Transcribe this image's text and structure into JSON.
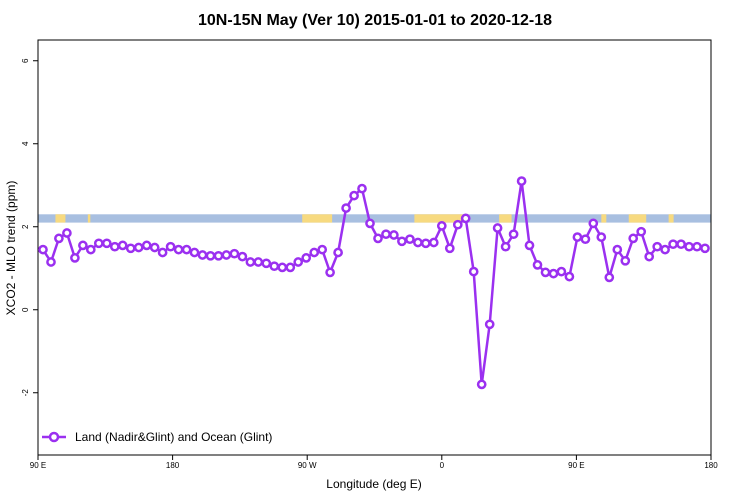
{
  "chart_data": {
    "type": "line",
    "title": "10N-15N May (Ver 10)   2015-01-01 to 2020-12-18",
    "xlabel": "Longitude (deg E)",
    "ylabel": "XCO2 - MLO trend (ppm)",
    "xlim": [
      -90,
      180
    ],
    "ylim": [
      -3.5,
      6.5
    ],
    "x_ticks": [
      {
        "value": -90,
        "label": "90 E"
      },
      {
        "value": -36,
        "label": "180"
      },
      {
        "value": 18,
        "label": "90 W"
      },
      {
        "value": 72,
        "label": "0"
      },
      {
        "value": 126,
        "label": "90 E"
      },
      {
        "value": 180,
        "label": "180"
      }
    ],
    "y_ticks": [
      {
        "value": -2,
        "label": "-2"
      },
      {
        "value": 0,
        "label": "0"
      },
      {
        "value": 2,
        "label": "2"
      },
      {
        "value": 4,
        "label": "4"
      },
      {
        "value": 6,
        "label": "6"
      }
    ],
    "colors": {
      "series": "#9b30f0",
      "ocean": "#a8bfe0",
      "land": "#f7da80"
    },
    "land_mask": {
      "y_range": [
        2.1,
        2.3
      ],
      "land_lon_ranges": [
        [
          -83,
          -79
        ],
        [
          -70,
          -69
        ],
        [
          16,
          28
        ],
        [
          61,
          81
        ],
        [
          95,
          100
        ],
        [
          136,
          138
        ],
        [
          147,
          154
        ],
        [
          163,
          165
        ]
      ]
    },
    "series": [
      {
        "name": "Land (Nadir&Glint) and Ocean (Glint)",
        "x": [
          -88,
          -84.8,
          -81.6,
          -78.4,
          -75.2,
          -72,
          -68.8,
          -65.6,
          -62.4,
          -59.2,
          -56,
          -52.8,
          -49.6,
          -46.4,
          -43.2,
          -40,
          -36.8,
          -33.6,
          -30.4,
          -27.2,
          -24,
          -20.8,
          -17.6,
          -14.4,
          -11.2,
          -8,
          -4.8,
          -1.6,
          1.6,
          4.8,
          8,
          11.2,
          14.4,
          17.6,
          20.8,
          24,
          27.2,
          30.4,
          33.6,
          36.8,
          40,
          43.2,
          46.4,
          49.6,
          52.8,
          56,
          59.2,
          62.4,
          65.6,
          68.8,
          72,
          75.2,
          78.4,
          81.6,
          84.8,
          88,
          91.2,
          94.4,
          97.6,
          100.8,
          104,
          107.2,
          110.4,
          113.6,
          116.8,
          120,
          123.2,
          126.4,
          129.6,
          132.8,
          136,
          139.2,
          142.4,
          145.6,
          148.8,
          152,
          155.2,
          158.4,
          161.6,
          164.8,
          168,
          171.2,
          174.4,
          177.6
        ],
        "y": [
          1.45,
          1.15,
          1.72,
          1.85,
          1.25,
          1.55,
          1.45,
          1.6,
          1.6,
          1.52,
          1.55,
          1.48,
          1.5,
          1.55,
          1.5,
          1.38,
          1.52,
          1.45,
          1.45,
          1.38,
          1.32,
          1.3,
          1.3,
          1.32,
          1.35,
          1.28,
          1.15,
          1.15,
          1.12,
          1.05,
          1.02,
          1.02,
          1.15,
          1.25,
          1.38,
          1.45,
          0.9,
          1.38,
          2.45,
          2.75,
          2.92,
          2.08,
          1.72,
          1.82,
          1.8,
          1.65,
          1.7,
          1.62,
          1.6,
          1.62,
          2.02,
          1.48,
          2.05,
          2.2,
          0.92,
          -1.8,
          -0.35,
          1.97,
          1.52,
          1.82,
          3.1,
          1.55,
          1.08,
          0.9,
          0.87,
          0.92,
          0.8,
          1.75,
          1.7,
          2.08,
          1.75,
          0.78,
          1.45,
          1.18,
          1.72,
          1.88,
          1.28,
          1.52,
          1.45,
          1.58,
          1.58,
          1.52,
          1.52,
          1.48
        ]
      }
    ],
    "legend": {
      "position": "bottom-left"
    }
  }
}
